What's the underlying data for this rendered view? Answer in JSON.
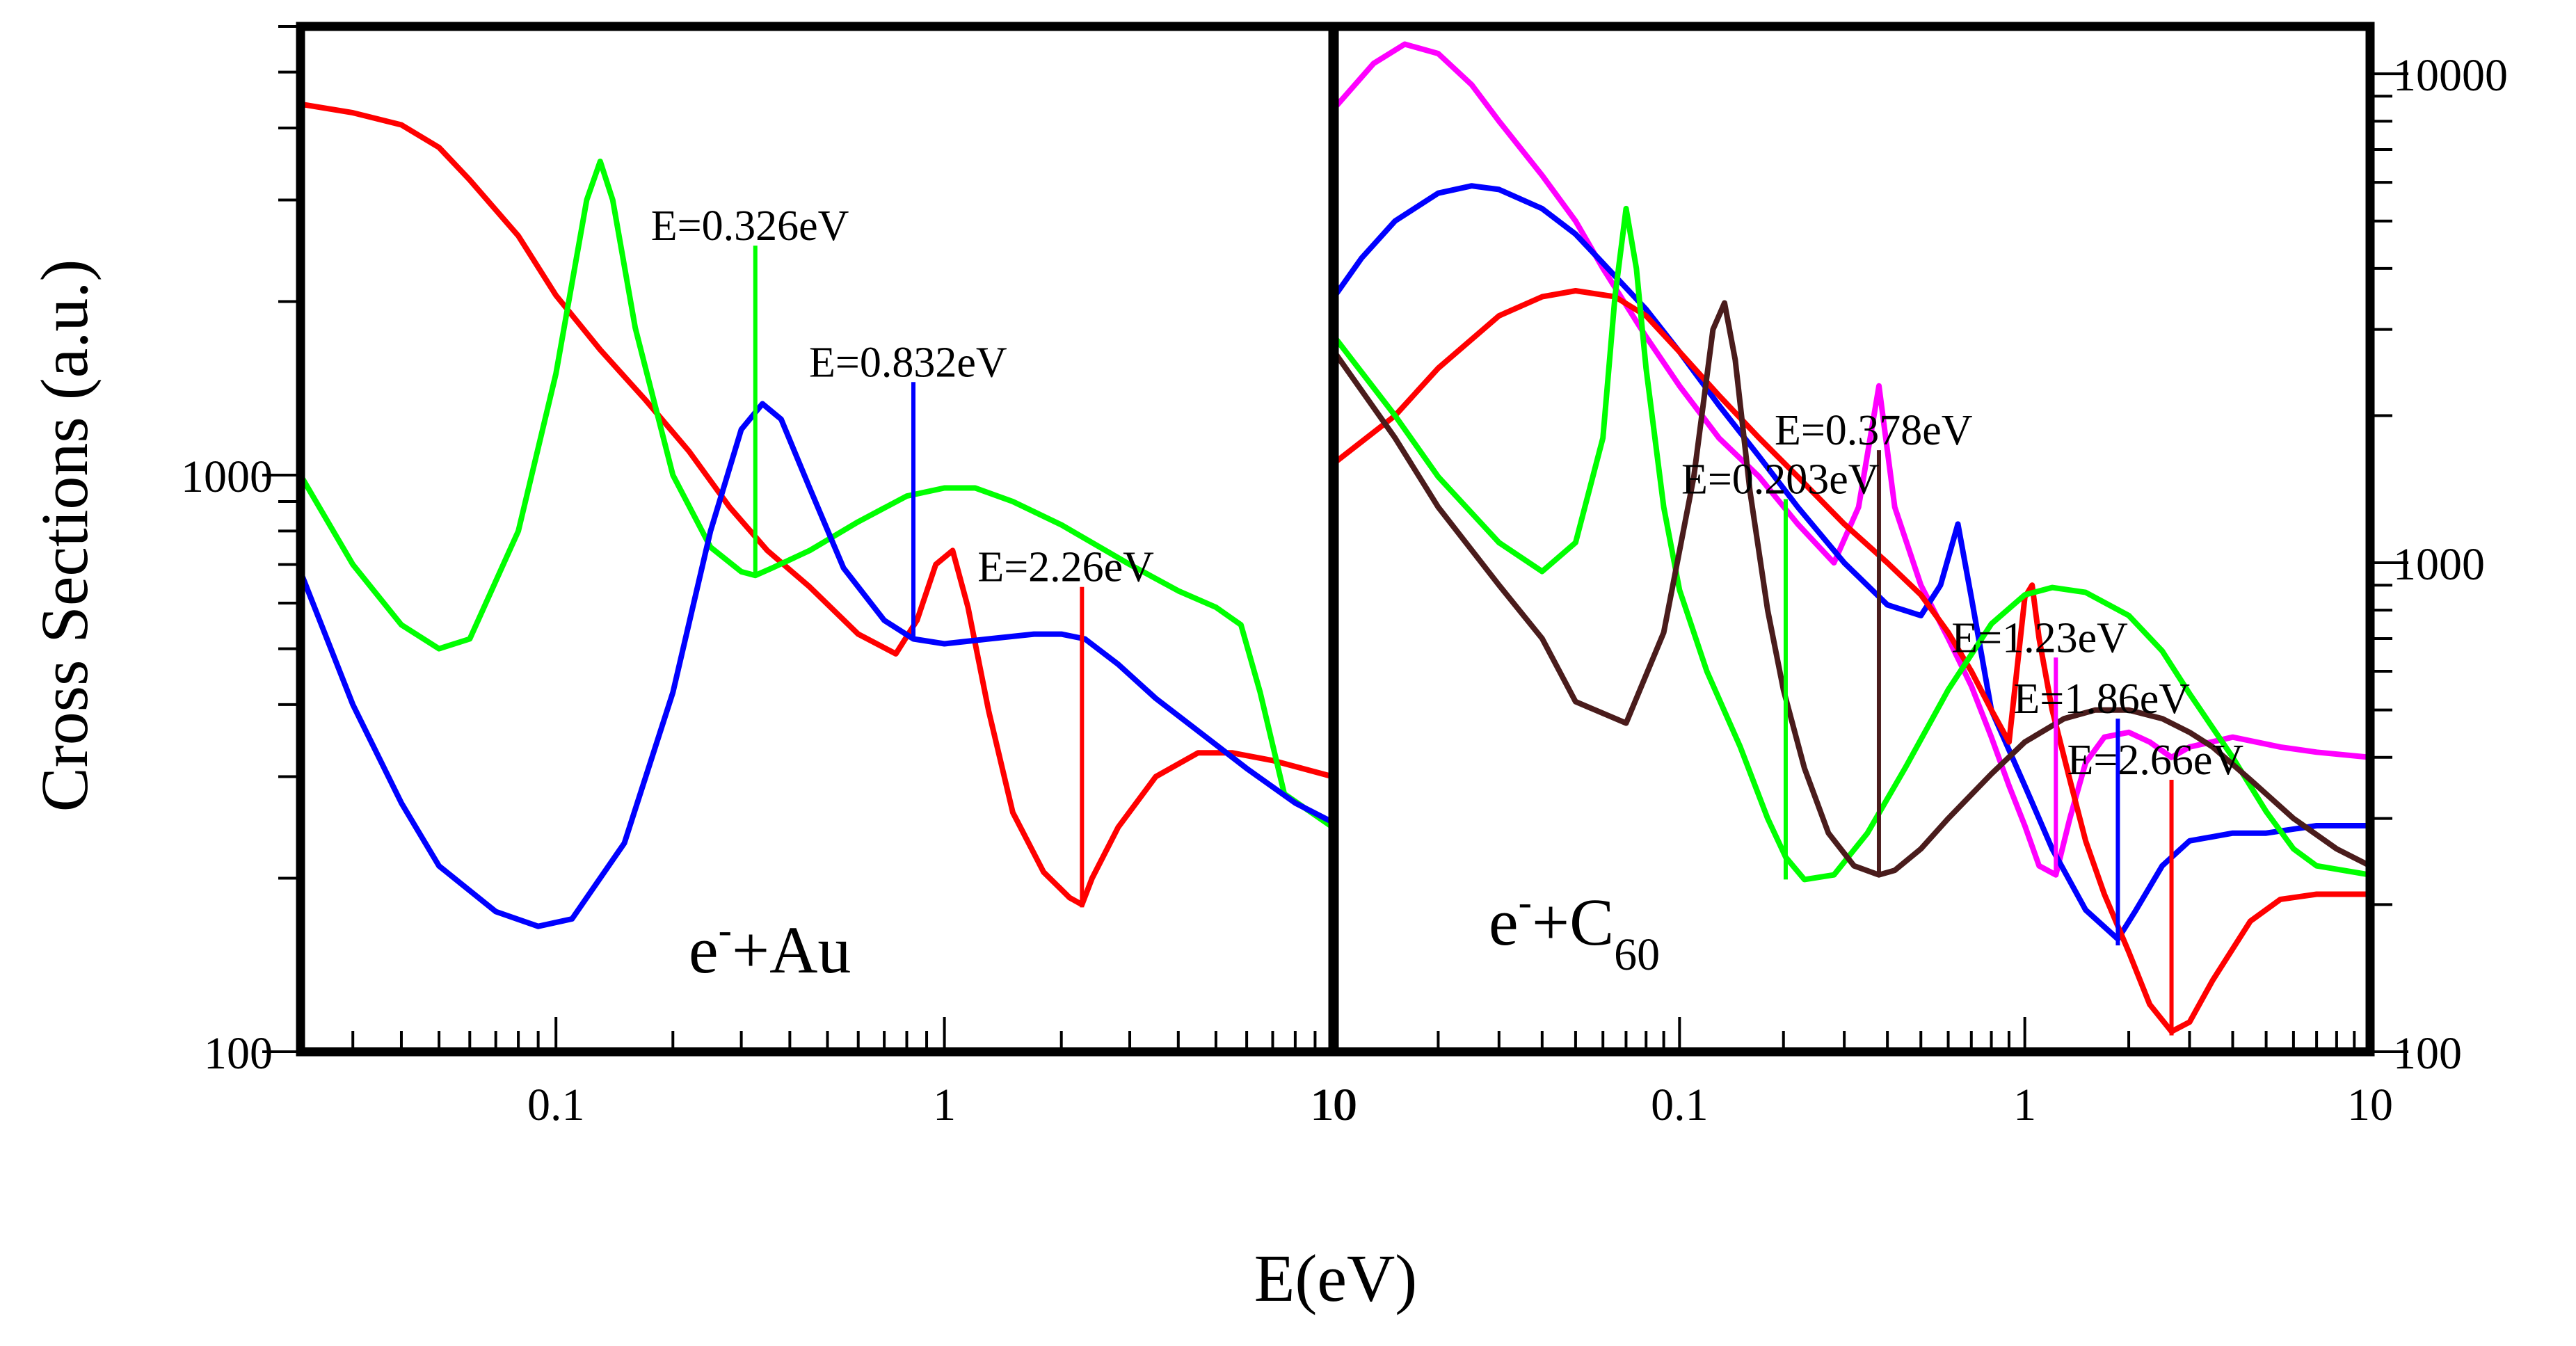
{
  "figure": {
    "ylabel": "Cross Sections (a.u.)",
    "xlabel": "E(eV)"
  },
  "chart_data": [
    {
      "type": "line",
      "panel": "left",
      "title": "",
      "label_main": "e",
      "label_sup": "-",
      "label_tail": "+Au",
      "xlabel": "E(eV)",
      "ylabel": "Cross Sections (a.u.)",
      "xscale": "log",
      "yscale": "log",
      "xlim": [
        0.022,
        10
      ],
      "ylim": [
        100,
        6000
      ],
      "x_ticklabels": [
        "0.1",
        "1",
        "10"
      ],
      "y_ticklabels": [
        "1000",
        "100"
      ],
      "y_axis_side": "left",
      "grid": false,
      "legend": "none",
      "series": [
        {
          "color": "#ff0000",
          "x": [
            0.022,
            0.03,
            0.04,
            0.05,
            0.06,
            0.08,
            0.1,
            0.13,
            0.17,
            0.22,
            0.28,
            0.35,
            0.45,
            0.6,
            0.75,
            0.85,
            0.95,
            1.05,
            1.15,
            1.3,
            1.5,
            1.8,
            2.1,
            2.26,
            2.4,
            2.8,
            3.5,
            4.5,
            5.5,
            7,
            10
          ],
          "y": [
            4400,
            4250,
            4050,
            3700,
            3250,
            2600,
            2050,
            1650,
            1350,
            1100,
            880,
            740,
            640,
            530,
            490,
            560,
            700,
            740,
            590,
            390,
            260,
            205,
            185,
            180,
            200,
            245,
            300,
            330,
            330,
            320,
            300
          ]
        },
        {
          "color": "#00ff00",
          "x": [
            0.022,
            0.03,
            0.04,
            0.05,
            0.06,
            0.08,
            0.1,
            0.12,
            0.13,
            0.14,
            0.16,
            0.2,
            0.25,
            0.3,
            0.326,
            0.36,
            0.45,
            0.6,
            0.8,
            1.0,
            1.2,
            1.5,
            2.0,
            3.0,
            4.0,
            5.0,
            5.8,
            6.5,
            7.5,
            10
          ],
          "y": [
            1000,
            700,
            550,
            500,
            520,
            800,
            1500,
            3000,
            3500,
            3000,
            1800,
            1000,
            750,
            680,
            670,
            690,
            740,
            830,
            920,
            950,
            950,
            900,
            820,
            700,
            630,
            590,
            550,
            420,
            280,
            245
          ]
        },
        {
          "color": "#0000ff",
          "x": [
            0.022,
            0.03,
            0.04,
            0.05,
            0.07,
            0.09,
            0.11,
            0.15,
            0.2,
            0.25,
            0.3,
            0.34,
            0.38,
            0.45,
            0.55,
            0.7,
            0.832,
            1.0,
            1.3,
            1.7,
            2.0,
            2.3,
            2.8,
            3.5,
            4.5,
            6,
            8,
            10
          ],
          "y": [
            680,
            400,
            270,
            210,
            175,
            165,
            170,
            230,
            420,
            800,
            1200,
            1330,
            1250,
            950,
            690,
            560,
            520,
            510,
            520,
            530,
            530,
            520,
            470,
            410,
            360,
            310,
            270,
            250
          ]
        }
      ],
      "spikes": [
        {
          "x": 0.326,
          "y_from": 670,
          "y_to": 2500,
          "color": "#00ff00",
          "label": "E=0.326eV"
        },
        {
          "x": 0.832,
          "y_from": 520,
          "y_to": 1450,
          "color": "#0000ff",
          "label": "E=0.832eV"
        },
        {
          "x": 2.26,
          "y_from": 178,
          "y_to": 640,
          "color": "#ff0000",
          "label": "E=2.26eV"
        }
      ]
    },
    {
      "type": "line",
      "panel": "right",
      "title": "",
      "label_main": "e",
      "label_sup": "-",
      "label_tail": "+C",
      "label_sub": "60",
      "xlabel": "E(eV)",
      "ylabel": "Cross Sections (a.u.)",
      "xscale": "log",
      "yscale": "log",
      "xlim": [
        0.01,
        10
      ],
      "ylim": [
        100,
        12500
      ],
      "x_ticklabels": [
        "10",
        "0.1",
        "1",
        "10"
      ],
      "y_ticklabels": [
        "10000",
        "1000",
        "100"
      ],
      "y_axis_side": "right",
      "grid": false,
      "legend": "none",
      "series": [
        {
          "color": "#ff00ff",
          "x": [
            0.01,
            0.013,
            0.016,
            0.02,
            0.025,
            0.03,
            0.04,
            0.05,
            0.06,
            0.08,
            0.1,
            0.13,
            0.17,
            0.22,
            0.28,
            0.33,
            0.378,
            0.42,
            0.5,
            0.6,
            0.7,
            0.8,
            0.9,
            1.0,
            1.1,
            1.23,
            1.35,
            1.5,
            1.7,
            2.0,
            2.3,
            2.66,
            3.0,
            4.0,
            5.5,
            7,
            10
          ],
          "y": [
            8500,
            10500,
            11500,
            11000,
            9500,
            8000,
            6200,
            5000,
            4000,
            2900,
            2300,
            1800,
            1500,
            1200,
            1000,
            1300,
            2300,
            1300,
            900,
            700,
            560,
            440,
            350,
            290,
            240,
            230,
            300,
            390,
            440,
            450,
            430,
            400,
            420,
            440,
            420,
            410,
            400
          ]
        },
        {
          "color": "#0000ff",
          "x": [
            0.01,
            0.012,
            0.015,
            0.02,
            0.025,
            0.03,
            0.04,
            0.05,
            0.06,
            0.08,
            0.1,
            0.13,
            0.17,
            0.22,
            0.3,
            0.4,
            0.5,
            0.57,
            0.64,
            0.7,
            0.8,
            1.0,
            1.2,
            1.5,
            1.86,
            2.1,
            2.5,
            3.0,
            4.0,
            5.0,
            7.0,
            10
          ],
          "y": [
            3500,
            4200,
            5000,
            5700,
            5900,
            5800,
            5300,
            4700,
            4100,
            3300,
            2700,
            2100,
            1650,
            1300,
            1000,
            820,
            780,
            900,
            1200,
            850,
            500,
            350,
            260,
            195,
            170,
            195,
            240,
            270,
            280,
            280,
            290,
            290
          ]
        },
        {
          "color": "#ff0000",
          "x": [
            0.01,
            0.015,
            0.02,
            0.03,
            0.04,
            0.05,
            0.065,
            0.08,
            0.1,
            0.13,
            0.17,
            0.22,
            0.3,
            0.4,
            0.5,
            0.6,
            0.7,
            0.8,
            0.9,
            1.0,
            1.05,
            1.1,
            1.2,
            1.35,
            1.5,
            1.7,
            2.0,
            2.3,
            2.66,
            3.0,
            3.5,
            4.5,
            5.5,
            7.0,
            10
          ],
          "y": [
            1600,
            2000,
            2500,
            3200,
            3500,
            3600,
            3500,
            3200,
            2700,
            2200,
            1800,
            1500,
            1200,
            1000,
            860,
            720,
            600,
            500,
            430,
            850,
            900,
            700,
            500,
            360,
            270,
            210,
            160,
            125,
            110,
            115,
            140,
            185,
            205,
            210,
            210
          ]
        },
        {
          "color": "#00ff00",
          "x": [
            0.01,
            0.015,
            0.02,
            0.03,
            0.04,
            0.05,
            0.06,
            0.065,
            0.07,
            0.075,
            0.08,
            0.09,
            0.1,
            0.12,
            0.15,
            0.18,
            0.203,
            0.23,
            0.28,
            0.35,
            0.45,
            0.6,
            0.8,
            1.0,
            1.2,
            1.5,
            2.0,
            2.5,
            3.0,
            4.0,
            5.0,
            6.0,
            7.0,
            10
          ],
          "y": [
            2900,
            2000,
            1500,
            1100,
            960,
            1100,
            1800,
            3500,
            5300,
            4000,
            2500,
            1300,
            880,
            600,
            420,
            300,
            250,
            225,
            230,
            280,
            380,
            550,
            750,
            860,
            890,
            870,
            780,
            660,
            540,
            400,
            310,
            260,
            240,
            230
          ]
        },
        {
          "color": "#4a1c1c",
          "x": [
            0.01,
            0.015,
            0.02,
            0.03,
            0.04,
            0.05,
            0.07,
            0.09,
            0.11,
            0.125,
            0.135,
            0.145,
            0.16,
            0.18,
            0.2,
            0.23,
            0.27,
            0.32,
            0.378,
            0.42,
            0.5,
            0.6,
            0.8,
            1.0,
            1.3,
            1.6,
            2.0,
            2.5,
            3.0,
            3.5,
            4.5,
            6.0,
            8.0,
            10
          ],
          "y": [
            2700,
            1800,
            1300,
            900,
            700,
            520,
            470,
            720,
            1500,
            3000,
            3400,
            2600,
            1400,
            800,
            550,
            380,
            280,
            240,
            230,
            235,
            260,
            300,
            370,
            430,
            480,
            500,
            500,
            480,
            450,
            420,
            360,
            300,
            260,
            240
          ]
        }
      ],
      "spikes": [
        {
          "x": 0.203,
          "y_from": 225,
          "y_to": 1350,
          "color": "#00ff00",
          "label": "E=0.203eV"
        },
        {
          "x": 0.378,
          "y_from": 230,
          "y_to": 1700,
          "color": "#4a1c1c",
          "label": "E=0.378eV"
        },
        {
          "x": 1.23,
          "y_from": 230,
          "y_to": 640,
          "color": "#ff00ff",
          "label": "E=1.23eV"
        },
        {
          "x": 1.86,
          "y_from": 165,
          "y_to": 480,
          "color": "#0000ff",
          "label": "E=1.86eV"
        },
        {
          "x": 2.66,
          "y_from": 108,
          "y_to": 360,
          "color": "#ff0000",
          "label": "E=2.66eV"
        }
      ]
    }
  ]
}
